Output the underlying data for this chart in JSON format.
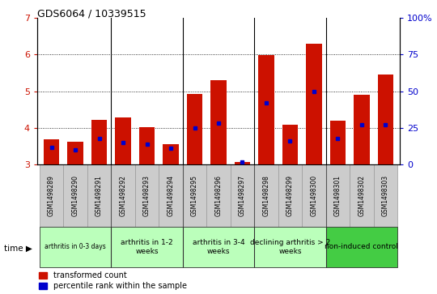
{
  "title": "GDS6064 / 10339515",
  "samples": [
    "GSM1498289",
    "GSM1498290",
    "GSM1498291",
    "GSM1498292",
    "GSM1498293",
    "GSM1498294",
    "GSM1498295",
    "GSM1498296",
    "GSM1498297",
    "GSM1498298",
    "GSM1498299",
    "GSM1498300",
    "GSM1498301",
    "GSM1498302",
    "GSM1498303"
  ],
  "red_values": [
    3.68,
    3.62,
    4.22,
    4.28,
    4.02,
    3.55,
    4.92,
    5.3,
    3.07,
    5.98,
    4.08,
    6.3,
    4.2,
    4.9,
    5.45
  ],
  "blue_values": [
    12,
    10,
    18,
    15,
    14,
    11,
    25,
    28,
    2,
    42,
    16,
    50,
    18,
    27,
    27
  ],
  "bar_bottom": 3.0,
  "ylim_left": [
    3,
    7
  ],
  "ylim_right": [
    0,
    100
  ],
  "yticks_left": [
    3,
    4,
    5,
    6,
    7
  ],
  "yticks_right": [
    0,
    25,
    50,
    75,
    100
  ],
  "bar_color": "#cc1100",
  "blue_color": "#0000cc",
  "sample_bg": "#cccccc",
  "sample_edge": "#999999",
  "groups": [
    {
      "label": "arthritis in 0-3 days",
      "start": 0,
      "end": 3,
      "dark": false
    },
    {
      "label": "arthritis in 1-2\nweeks",
      "start": 3,
      "end": 6,
      "dark": false
    },
    {
      "label": "arthritis in 3-4\nweeks",
      "start": 6,
      "end": 9,
      "dark": false
    },
    {
      "label": "declining arthritis > 2\nweeks",
      "start": 9,
      "end": 12,
      "dark": false
    },
    {
      "label": "non-induced control",
      "start": 12,
      "end": 15,
      "dark": true
    }
  ],
  "group_dividers": [
    3,
    6,
    9,
    12
  ],
  "group_bg_light": "#bbffbb",
  "group_bg_dark": "#44cc44",
  "legend_red": "transformed count",
  "legend_blue": "percentile rank within the sample",
  "bar_width": 0.65
}
